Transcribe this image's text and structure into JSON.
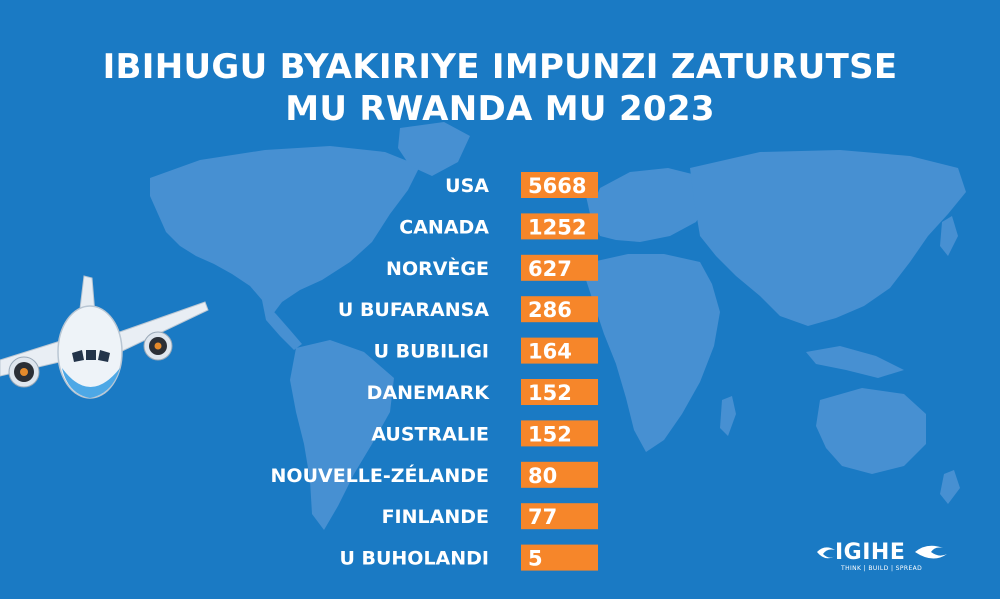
{
  "title": {
    "line1": "IBIHUGU BYAKIRIYE IMPUNZI ZATURUTSE",
    "line2": "MU RWANDA MU 2023"
  },
  "colors": {
    "background": "#1a7ac4",
    "map": "#4790d2",
    "bar": "#f6862a",
    "text": "#ffffff"
  },
  "logo": {
    "name": "IGIHE",
    "tagline": "THINK | BUILD | SPREAD"
  },
  "chart_data": {
    "type": "bar",
    "orientation": "horizontal",
    "title": "IBIHUGU BYAKIRIYE IMPUNZI ZATURUTSE MU RWANDA MU 2023",
    "categories": [
      "USA",
      "CANADA",
      "NORVÈGE",
      "U BUFARANSA",
      "U BUBILIGI",
      "DANEMARK",
      "AUSTRALIE",
      "NOUVELLE-ZÉLANDE",
      "FINLANDE",
      "U BUHOLANDI"
    ],
    "values": [
      5668,
      1252,
      627,
      286,
      164,
      152,
      152,
      80,
      77,
      5
    ],
    "data_labels": [
      "5668",
      "1252",
      "627",
      "286",
      "164",
      "152",
      "152",
      "80",
      "77",
      "5"
    ],
    "bar_length": "uniform",
    "xlabel": "",
    "ylabel": "",
    "grid": false,
    "legend": "none"
  }
}
